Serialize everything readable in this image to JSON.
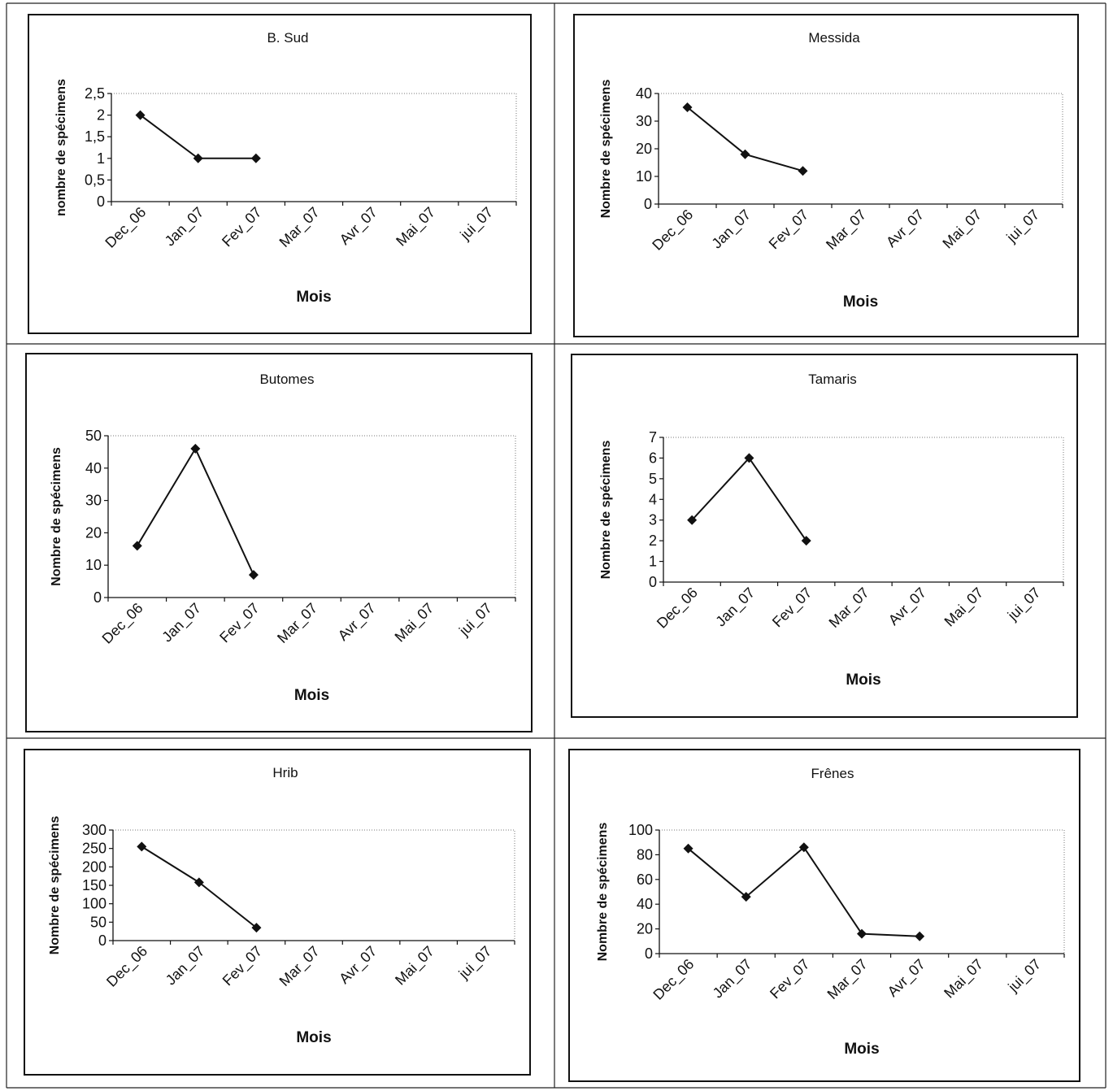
{
  "chart_data": [
    {
      "type": "line",
      "title": "B. Sud",
      "xlabel": "Mois",
      "ylabel": "nombre de spécimens",
      "categories": [
        "Dec_06",
        "Jan_07",
        "Fev_07",
        "Mar_07",
        "Avr_07",
        "Mai_07",
        "jui_07"
      ],
      "x": [
        "Dec_06",
        "Jan_07",
        "Fev_07"
      ],
      "values": [
        2,
        1,
        1
      ],
      "ylim": [
        0,
        2.5
      ],
      "yticks": [
        "0",
        "0,5",
        "1",
        "1,5",
        "2",
        "2,5"
      ],
      "marker": "diamond",
      "grid": false,
      "legend": "none"
    },
    {
      "type": "line",
      "title": "Messida",
      "xlabel": "Mois",
      "ylabel": "Nombre de spécimens",
      "categories": [
        "Dec_06",
        "Jan_07",
        "Fev_07",
        "Mar_07",
        "Avr_07",
        "Mai_07",
        "jui_07"
      ],
      "x": [
        "Dec_06",
        "Jan_07",
        "Fev_07"
      ],
      "values": [
        35,
        18,
        12
      ],
      "ylim": [
        0,
        40
      ],
      "yticks": [
        "0",
        "10",
        "20",
        "30",
        "40"
      ],
      "marker": "diamond",
      "grid": false,
      "legend": "none"
    },
    {
      "type": "line",
      "title": "Butomes",
      "xlabel": "Mois",
      "ylabel": "Nombre de spécimens",
      "categories": [
        "Dec_06",
        "Jan_07",
        "Fev_07",
        "Mar_07",
        "Avr_07",
        "Mai_07",
        "jui_07"
      ],
      "x": [
        "Dec_06",
        "Jan_07",
        "Fev_07"
      ],
      "values": [
        16,
        46,
        7
      ],
      "ylim": [
        0,
        50
      ],
      "yticks": [
        "0",
        "10",
        "20",
        "30",
        "40",
        "50"
      ],
      "marker": "diamond",
      "grid": false,
      "legend": "none"
    },
    {
      "type": "line",
      "title": "Tamaris",
      "xlabel": "Mois",
      "ylabel": "Nombre de spécimens",
      "categories": [
        "Dec_06",
        "Jan_07",
        "Fev_07",
        "Mar_07",
        "Avr_07",
        "Mai_07",
        "jui_07"
      ],
      "x": [
        "Dec_06",
        "Jan_07",
        "Fev_07"
      ],
      "values": [
        3,
        6,
        2
      ],
      "ylim": [
        0,
        7
      ],
      "yticks": [
        "0",
        "1",
        "2",
        "3",
        "4",
        "5",
        "6",
        "7"
      ],
      "marker": "diamond",
      "grid": false,
      "legend": "none"
    },
    {
      "type": "line",
      "title": "Hrib",
      "xlabel": "Mois",
      "ylabel": "Nombre de spécimens",
      "categories": [
        "Dec_06",
        "Jan_07",
        "Fev_07",
        "Mar_07",
        "Avr_07",
        "Mai_07",
        "jui_07"
      ],
      "x": [
        "Dec_06",
        "Jan_07",
        "Fev_07"
      ],
      "values": [
        255,
        158,
        35
      ],
      "ylim": [
        0,
        300
      ],
      "yticks": [
        "0",
        "50",
        "100",
        "150",
        "200",
        "250",
        "300"
      ],
      "marker": "diamond",
      "grid": false,
      "legend": "none"
    },
    {
      "type": "line",
      "title": "Frênes",
      "xlabel": "Mois",
      "ylabel": "Nombre de spécimens",
      "categories": [
        "Dec_06",
        "Jan_07",
        "Fev_07",
        "Mar_07",
        "Avr_07",
        "Mai_07",
        "jui_07"
      ],
      "x": [
        "Dec_06",
        "Jan_07",
        "Fev_07",
        "Mar_07",
        "Avr_07"
      ],
      "values": [
        85,
        46,
        86,
        16,
        14
      ],
      "ylim": [
        0,
        100
      ],
      "yticks": [
        "0",
        "20",
        "40",
        "60",
        "80",
        "100"
      ],
      "marker": "diamond",
      "grid": false,
      "legend": "none"
    }
  ]
}
